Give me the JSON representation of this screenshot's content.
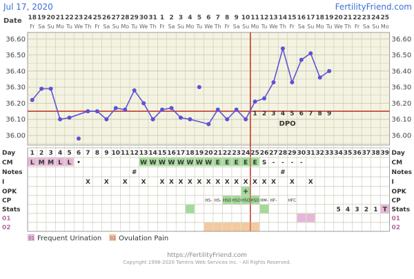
{
  "header": {
    "date": "Jul 17, 2020",
    "site": "FertilityFriend.com"
  },
  "footer": {
    "url": "https://FertilityFriend.com",
    "copyright": "Copyright 1998-2020 Tamtris Web Services Inc. - All Rights Reserved."
  },
  "row_labels": {
    "date": "Date",
    "day": "Day",
    "cm": "CM",
    "notes": "Notes",
    "i": "I",
    "opk": "OPK",
    "cp": "CP",
    "stats": "Stats",
    "c01": "01",
    "c02": "02"
  },
  "legend": [
    {
      "code": "01",
      "label": "Frequent Urination",
      "color": "#e6b8d8"
    },
    {
      "code": "02",
      "label": "Ovulation Pain",
      "color": "#f5c9a0"
    }
  ],
  "colors": {
    "background": "#ffffff",
    "plot_bg": "#f4f3e2",
    "grid": "#c9c8b0",
    "line": "#5d52d6",
    "coverline": "#c0392b",
    "ovulation_line": "#c0392b",
    "menstrual": "#e6b8d8",
    "egg_white": "#a3d99a",
    "pain": "#f5c9a0",
    "header_blue": "#3a6fd8",
    "text": "#333333"
  },
  "chart_data": {
    "type": "line",
    "title": "",
    "xlabel": "Day",
    "ylabel": "",
    "ylim": [
      35.94,
      36.64
    ],
    "y_ticks": [
      "36.60",
      "36.50",
      "36.40",
      "36.30",
      "36.20",
      "36.10",
      "36.00"
    ],
    "days": [
      1,
      2,
      3,
      4,
      5,
      6,
      7,
      8,
      9,
      10,
      11,
      12,
      13,
      14,
      15,
      16,
      17,
      18,
      19,
      20,
      21,
      22,
      23,
      24,
      25,
      26,
      27,
      28,
      29,
      30,
      31,
      32,
      33,
      34,
      35,
      36,
      37,
      38,
      39
    ],
    "dates": [
      "18",
      "19",
      "20",
      "21",
      "22",
      "23",
      "24",
      "25",
      "26",
      "27",
      "28",
      "29",
      "30",
      "31",
      "1",
      "2",
      "3",
      "4",
      "5",
      "6",
      "7",
      "8",
      "9",
      "10",
      "11",
      "12",
      "13",
      "14",
      "15",
      "16",
      "17",
      "18",
      "19",
      "20",
      "21",
      "22",
      "23",
      "24",
      "25"
    ],
    "weekdays": [
      "Fr",
      "Sa",
      "Su",
      "Mo",
      "Tu",
      "We",
      "Th",
      "Fr",
      "Sa",
      "Su",
      "Mo",
      "Tu",
      "We",
      "Th",
      "Fr",
      "Sa",
      "Su",
      "Mo",
      "Tu",
      "We",
      "Th",
      "Fr",
      "Sa",
      "Su",
      "Mo",
      "Tu",
      "We",
      "Th",
      "Fr",
      "Sa",
      "Su",
      "Mo",
      "Tu",
      "We",
      "Th",
      "Fr",
      "Sa",
      "Su",
      "Mo"
    ],
    "series": [
      {
        "values": [
          36.22,
          36.29,
          36.29,
          36.1,
          36.11,
          null,
          36.15,
          36.15,
          36.1,
          36.17,
          36.16,
          36.28,
          36.2,
          36.1,
          36.16,
          36.17,
          36.11,
          36.1,
          null,
          36.07,
          36.16,
          36.1,
          36.16,
          36.1,
          36.21,
          36.23,
          36.33,
          36.54,
          36.33,
          36.47,
          36.51,
          36.36,
          36.4,
          null,
          null,
          null,
          null,
          null,
          null
        ]
      }
    ],
    "outliers": [
      {
        "day": 6,
        "value": 35.98
      },
      {
        "day": 19,
        "value": 36.3
      }
    ],
    "coverline": 36.15,
    "ovulation_day": 24,
    "dpo_label": "DPO",
    "dpo_numbers": [
      {
        "day": 25,
        "label": "1"
      },
      {
        "day": 26,
        "label": "2"
      },
      {
        "day": 27,
        "label": "3"
      },
      {
        "day": 28,
        "label": "4"
      },
      {
        "day": 29,
        "label": "5"
      },
      {
        "day": 30,
        "label": "6"
      },
      {
        "day": 31,
        "label": "7"
      },
      {
        "day": 32,
        "label": "8"
      },
      {
        "day": 33,
        "label": "9"
      }
    ],
    "cm": [
      {
        "day": 1,
        "value": "L"
      },
      {
        "day": 2,
        "value": "M"
      },
      {
        "day": 3,
        "value": "M"
      },
      {
        "day": 4,
        "value": "L"
      },
      {
        "day": 5,
        "value": "L"
      },
      {
        "day": 6,
        "value": "•"
      },
      {
        "day": 13,
        "value": "W"
      },
      {
        "day": 14,
        "value": "W"
      },
      {
        "day": 15,
        "value": "W"
      },
      {
        "day": 16,
        "value": "W"
      },
      {
        "day": 17,
        "value": "W"
      },
      {
        "day": 18,
        "value": "W"
      },
      {
        "day": 19,
        "value": "W"
      },
      {
        "day": 20,
        "value": "W"
      },
      {
        "day": 21,
        "value": "E"
      },
      {
        "day": 22,
        "value": "E"
      },
      {
        "day": 23,
        "value": "E"
      },
      {
        "day": 24,
        "value": "E"
      },
      {
        "day": 25,
        "value": "E"
      },
      {
        "day": 26,
        "value": "S"
      },
      {
        "day": 27,
        "value": "-"
      },
      {
        "day": 28,
        "value": "-"
      },
      {
        "day": 29,
        "value": "-"
      },
      {
        "day": 30,
        "value": "-"
      }
    ],
    "cm_menstrual_days": [
      1,
      2,
      3,
      4,
      5
    ],
    "cm_fertile_days": [
      13,
      14,
      15,
      16,
      17,
      18,
      19,
      20,
      21,
      22,
      23,
      24,
      25
    ],
    "notes": [
      {
        "day": 12,
        "value": "#"
      },
      {
        "day": 28,
        "value": "#"
      }
    ],
    "intercourse_days": [
      7,
      9,
      11,
      13,
      15,
      16,
      17,
      18,
      19,
      20,
      21,
      22,
      23,
      24,
      25,
      26,
      27,
      29,
      31
    ],
    "opk": [
      {
        "day": 24,
        "value": "+"
      }
    ],
    "opk_positive_days": [
      24
    ],
    "cp": [
      {
        "day": 20,
        "value": "HS-"
      },
      {
        "day": 21,
        "value": "HS-"
      },
      {
        "day": 22,
        "value": "HSO"
      },
      {
        "day": 23,
        "value": "HSO"
      },
      {
        "day": 24,
        "value": "HSO"
      },
      {
        "day": 25,
        "value": "HSO"
      },
      {
        "day": 26,
        "value": "HM-"
      },
      {
        "day": 27,
        "value": "HF-"
      },
      {
        "day": 29,
        "value": "HFC"
      }
    ],
    "cp_highlight_days": [
      22,
      23,
      24,
      25
    ],
    "stats": [
      {
        "day": 34,
        "value": "5"
      },
      {
        "day": 35,
        "value": "4"
      },
      {
        "day": 36,
        "value": "3"
      },
      {
        "day": 37,
        "value": "2"
      },
      {
        "day": 38,
        "value": "1"
      },
      {
        "day": 39,
        "value": "T"
      }
    ],
    "stats_green_days": [
      18,
      26
    ],
    "stats_pink_days": [
      39
    ],
    "c01_days": [
      30,
      31
    ],
    "c02_days": [
      20,
      21,
      22,
      23,
      24,
      25
    ]
  }
}
